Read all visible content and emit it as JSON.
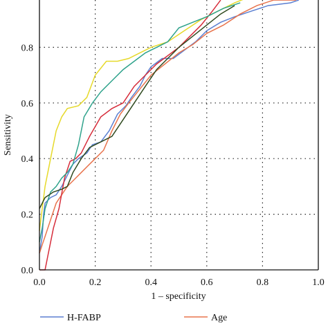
{
  "chart_data": {
    "type": "line",
    "xlabel": "1 – specificity",
    "ylabel": "Sensitivity",
    "xlim": [
      0,
      1.0
    ],
    "ylim": [
      0,
      1.0
    ],
    "xticks": [
      0.0,
      0.2,
      0.4,
      0.6,
      0.8,
      1.0
    ],
    "xtick_labels": [
      "0.0",
      "0.2",
      "0.4",
      "0.6",
      "0.8",
      "1.0"
    ],
    "yticks": [
      0.0,
      0.2,
      0.4,
      0.6,
      0.8
    ],
    "ytick_labels": [
      "0.0",
      "0.2",
      "0.4",
      "0.6",
      "0.8"
    ],
    "grid": "dotted",
    "legend_position": "bottom",
    "series": [
      {
        "name": "H-FABP",
        "color": "#5b7fd1",
        "points": [
          [
            0,
            0.06
          ],
          [
            0.01,
            0.12
          ],
          [
            0.015,
            0.2
          ],
          [
            0.02,
            0.24
          ],
          [
            0.04,
            0.26
          ],
          [
            0.06,
            0.27
          ],
          [
            0.08,
            0.3
          ],
          [
            0.1,
            0.34
          ],
          [
            0.12,
            0.38
          ],
          [
            0.14,
            0.4
          ],
          [
            0.17,
            0.42
          ],
          [
            0.19,
            0.45
          ],
          [
            0.22,
            0.46
          ],
          [
            0.25,
            0.5
          ],
          [
            0.28,
            0.56
          ],
          [
            0.31,
            0.59
          ],
          [
            0.33,
            0.62
          ],
          [
            0.36,
            0.66
          ],
          [
            0.38,
            0.7
          ],
          [
            0.4,
            0.73
          ],
          [
            0.44,
            0.76
          ],
          [
            0.48,
            0.76
          ],
          [
            0.52,
            0.79
          ],
          [
            0.56,
            0.82
          ],
          [
            0.6,
            0.86
          ],
          [
            0.65,
            0.89
          ],
          [
            0.7,
            0.91
          ],
          [
            0.76,
            0.93
          ],
          [
            0.82,
            0.95
          ],
          [
            0.9,
            0.96
          ],
          [
            0.93,
            0.97
          ]
        ]
      },
      {
        "name": "Age",
        "color": "#e8734c",
        "points": [
          [
            0,
            0.06
          ],
          [
            0.01,
            0.09
          ],
          [
            0.02,
            0.12
          ],
          [
            0.04,
            0.18
          ],
          [
            0.06,
            0.24
          ],
          [
            0.08,
            0.27
          ],
          [
            0.1,
            0.3
          ],
          [
            0.12,
            0.32
          ],
          [
            0.15,
            0.35
          ],
          [
            0.18,
            0.38
          ],
          [
            0.2,
            0.4
          ],
          [
            0.23,
            0.43
          ],
          [
            0.26,
            0.5
          ],
          [
            0.29,
            0.56
          ],
          [
            0.32,
            0.6
          ],
          [
            0.36,
            0.65
          ],
          [
            0.4,
            0.7
          ],
          [
            0.45,
            0.74
          ],
          [
            0.5,
            0.78
          ],
          [
            0.55,
            0.81
          ],
          [
            0.6,
            0.85
          ],
          [
            0.66,
            0.88
          ],
          [
            0.72,
            0.92
          ],
          [
            0.78,
            0.95
          ],
          [
            0.84,
            0.97
          ],
          [
            0.92,
            0.97
          ]
        ]
      },
      {
        "name": "",
        "color": "#d62c3a",
        "points": [
          [
            0,
            0
          ],
          [
            0.02,
            0.0
          ],
          [
            0.03,
            0.05
          ],
          [
            0.05,
            0.15
          ],
          [
            0.07,
            0.22
          ],
          [
            0.09,
            0.33
          ],
          [
            0.11,
            0.39
          ],
          [
            0.13,
            0.4
          ],
          [
            0.15,
            0.42
          ],
          [
            0.18,
            0.48
          ],
          [
            0.22,
            0.55
          ],
          [
            0.26,
            0.58
          ],
          [
            0.3,
            0.6
          ],
          [
            0.34,
            0.66
          ],
          [
            0.38,
            0.7
          ],
          [
            0.42,
            0.74
          ],
          [
            0.46,
            0.77
          ],
          [
            0.5,
            0.8
          ],
          [
            0.54,
            0.84
          ],
          [
            0.58,
            0.88
          ],
          [
            0.62,
            0.93
          ],
          [
            0.65,
            0.97
          ]
        ]
      },
      {
        "name": "",
        "color": "#e6d92a",
        "points": [
          [
            0,
            0.14
          ],
          [
            0.01,
            0.22
          ],
          [
            0.02,
            0.3
          ],
          [
            0.03,
            0.35
          ],
          [
            0.04,
            0.4
          ],
          [
            0.06,
            0.5
          ],
          [
            0.08,
            0.55
          ],
          [
            0.1,
            0.58
          ],
          [
            0.14,
            0.59
          ],
          [
            0.17,
            0.62
          ],
          [
            0.2,
            0.7
          ],
          [
            0.24,
            0.75
          ],
          [
            0.28,
            0.75
          ],
          [
            0.32,
            0.76
          ],
          [
            0.36,
            0.78
          ],
          [
            0.4,
            0.8
          ],
          [
            0.46,
            0.82
          ],
          [
            0.52,
            0.86
          ],
          [
            0.58,
            0.9
          ],
          [
            0.64,
            0.93
          ],
          [
            0.7,
            0.96
          ],
          [
            0.75,
            0.98
          ]
        ]
      },
      {
        "name": "",
        "color": "#2ea28b",
        "points": [
          [
            0,
            0.1
          ],
          [
            0.01,
            0.15
          ],
          [
            0.02,
            0.22
          ],
          [
            0.04,
            0.28
          ],
          [
            0.06,
            0.3
          ],
          [
            0.08,
            0.33
          ],
          [
            0.1,
            0.35
          ],
          [
            0.12,
            0.38
          ],
          [
            0.14,
            0.45
          ],
          [
            0.16,
            0.55
          ],
          [
            0.19,
            0.6
          ],
          [
            0.22,
            0.64
          ],
          [
            0.26,
            0.68
          ],
          [
            0.3,
            0.72
          ],
          [
            0.34,
            0.75
          ],
          [
            0.38,
            0.78
          ],
          [
            0.42,
            0.8
          ],
          [
            0.46,
            0.82
          ],
          [
            0.5,
            0.87
          ],
          [
            0.55,
            0.89
          ],
          [
            0.6,
            0.91
          ],
          [
            0.66,
            0.94
          ],
          [
            0.72,
            0.96
          ]
        ]
      },
      {
        "name": "",
        "color": "#2f4a1f",
        "points": [
          [
            0,
            0.22
          ],
          [
            0.02,
            0.26
          ],
          [
            0.05,
            0.28
          ],
          [
            0.08,
            0.29
          ],
          [
            0.1,
            0.3
          ],
          [
            0.12,
            0.35
          ],
          [
            0.15,
            0.4
          ],
          [
            0.18,
            0.44
          ],
          [
            0.22,
            0.46
          ],
          [
            0.26,
            0.48
          ],
          [
            0.3,
            0.54
          ],
          [
            0.34,
            0.6
          ],
          [
            0.38,
            0.66
          ],
          [
            0.42,
            0.72
          ],
          [
            0.46,
            0.76
          ],
          [
            0.5,
            0.8
          ],
          [
            0.55,
            0.84
          ],
          [
            0.6,
            0.88
          ],
          [
            0.65,
            0.92
          ],
          [
            0.7,
            0.95
          ]
        ]
      }
    ]
  }
}
